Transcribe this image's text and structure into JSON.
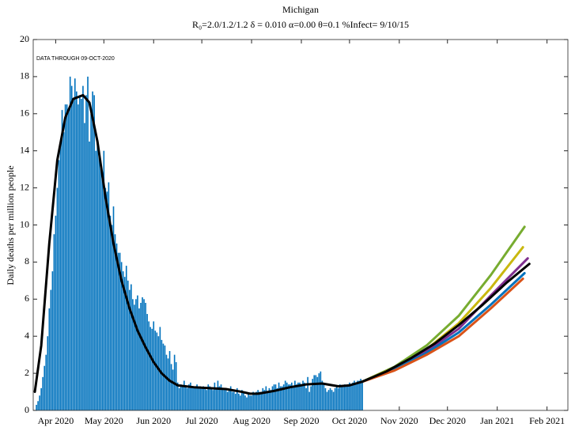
{
  "chart_data": {
    "type": "combo",
    "title": "Michigan",
    "subtitle": "R₀=2.0/1.2/1.2  δ = 0.010  α=0.00  θ=0.1  %Infect= 9/10/15",
    "annotation": "DATA THROUGH 09-OCT-2020",
    "ylabel": "Daily deaths per million people",
    "xlim": [
      0,
      333
    ],
    "xticks": [
      {
        "value": 14,
        "label": "Apr 2020"
      },
      {
        "value": 44,
        "label": "May 2020"
      },
      {
        "value": 75,
        "label": "Jun 2020"
      },
      {
        "value": 105,
        "label": "Jul 2020"
      },
      {
        "value": 136,
        "label": "Aug 2020"
      },
      {
        "value": 167,
        "label": "Sep 2020"
      },
      {
        "value": 197,
        "label": "Oct 2020"
      },
      {
        "value": 228,
        "label": "Nov 2020"
      },
      {
        "value": 258,
        "label": "Dec 2020"
      },
      {
        "value": 289,
        "label": "Jan 2021"
      },
      {
        "value": 320,
        "label": "Feb 2021"
      }
    ],
    "ylim": [
      0,
      20
    ],
    "yticks": [
      0,
      2,
      4,
      6,
      8,
      10,
      12,
      14,
      16,
      18,
      20
    ],
    "series": [
      {
        "type": "bar",
        "color": "#0072bd",
        "x": [
          2,
          3,
          4,
          5,
          6,
          7,
          8,
          9,
          10,
          11,
          12,
          13,
          14,
          15,
          16,
          17,
          18,
          19,
          20,
          21,
          22,
          23,
          24,
          25,
          26,
          27,
          28,
          29,
          30,
          31,
          32,
          33,
          34,
          35,
          36,
          37,
          38,
          39,
          40,
          41,
          42,
          43,
          44,
          45,
          46,
          47,
          48,
          49,
          50,
          51,
          52,
          53,
          54,
          55,
          56,
          57,
          58,
          59,
          60,
          61,
          62,
          63,
          64,
          65,
          66,
          67,
          68,
          69,
          70,
          71,
          72,
          73,
          74,
          75,
          76,
          77,
          78,
          79,
          80,
          81,
          82,
          83,
          84,
          85,
          86,
          87,
          88,
          89,
          90,
          91,
          92,
          93,
          94,
          95,
          96,
          97,
          98,
          99,
          100,
          101,
          102,
          103,
          104,
          105,
          106,
          107,
          108,
          109,
          110,
          111,
          112,
          113,
          114,
          115,
          116,
          117,
          118,
          119,
          120,
          121,
          122,
          123,
          124,
          125,
          126,
          127,
          128,
          129,
          130,
          131,
          132,
          133,
          134,
          135,
          136,
          137,
          138,
          139,
          140,
          141,
          142,
          143,
          144,
          145,
          146,
          147,
          148,
          149,
          150,
          151,
          152,
          153,
          154,
          155,
          156,
          157,
          158,
          159,
          160,
          161,
          162,
          163,
          164,
          165,
          166,
          167,
          168,
          169,
          170,
          171,
          172,
          173,
          174,
          175,
          176,
          177,
          178,
          179,
          180,
          181,
          182,
          183,
          184,
          185,
          186,
          187,
          188,
          189,
          190,
          191,
          192,
          193,
          194,
          195,
          196,
          197,
          198,
          199,
          200,
          201,
          202,
          203,
          204,
          205
        ],
        "values": [
          0.3,
          0.5,
          0.8,
          1.2,
          1.8,
          2.4,
          3.0,
          4.0,
          5.5,
          6.5,
          7.5,
          9.5,
          10.5,
          12,
          13.5,
          14.5,
          16.2,
          15,
          16.5,
          16.5,
          16.2,
          18,
          17.5,
          16.8,
          17.9,
          17.2,
          16.5,
          17,
          16.8,
          17.5,
          15.5,
          17,
          18,
          14.5,
          16,
          17.2,
          17,
          14,
          14.5,
          14,
          13.5,
          12.5,
          14,
          12,
          11.8,
          12.3,
          10.5,
          10,
          11,
          9.5,
          9,
          8.5,
          8.5,
          8,
          7.5,
          7.2,
          7.8,
          7.0,
          6.5,
          6.8,
          6.0,
          5.7,
          6.0,
          6.2,
          5.5,
          5.8,
          6.1,
          6.0,
          5.8,
          5.2,
          4.8,
          4.5,
          4.4,
          4.8,
          4.3,
          4.2,
          4.0,
          4.5,
          3.8,
          3.6,
          3.5,
          3.0,
          2.8,
          3.2,
          2.5,
          2.2,
          3.0,
          2.6,
          1.5,
          1.2,
          1.4,
          1.3,
          1.6,
          1.3,
          1.2,
          1.4,
          1.5,
          1.3,
          1.2,
          1.3,
          1.4,
          1.2,
          1.3,
          1.2,
          1.3,
          1.2,
          1.1,
          1.4,
          1.3,
          1.2,
          1.1,
          1.5,
          1.2,
          1.6,
          1.3,
          1.4,
          1.2,
          1.1,
          1.2,
          1.0,
          1.1,
          1.3,
          1.0,
          1.0,
          0.9,
          1.2,
          0.9,
          0.8,
          1.1,
          1.0,
          0.8,
          0.7,
          0.9,
          0.8,
          0.8,
          1.0,
          0.9,
          1.0,
          1.1,
          1.0,
          1.0,
          1.2,
          1.1,
          1.3,
          1.0,
          1.2,
          1.1,
          1.3,
          1.4,
          1.4,
          1.2,
          1.5,
          1.3,
          1.3,
          1.4,
          1.6,
          1.5,
          1.4,
          1.4,
          1.5,
          1.3,
          1.6,
          1.4,
          1.5,
          1.5,
          1.4,
          1.6,
          1.5,
          1.2,
          1.8,
          1.0,
          1.3,
          1.7,
          1.9,
          1.9,
          1.8,
          2.0,
          2.1,
          1.6,
          1.4,
          1.2,
          1.0,
          1.1,
          1.2,
          1.1,
          1.0,
          1.2,
          1.3,
          1.2,
          1.4,
          1.3,
          1.3,
          1.4,
          1.3,
          1.4,
          1.5,
          1.4,
          1.5,
          1.6,
          1.5,
          1.6,
          1.6,
          1.7,
          1.6
        ]
      },
      {
        "type": "line",
        "color": "#77ac30",
        "x": [
          205,
          225,
          245,
          265,
          285,
          306
        ],
        "values": [
          1.55,
          2.35,
          3.5,
          5.1,
          7.3,
          9.9
        ]
      },
      {
        "type": "line",
        "color": "#c9b80f",
        "x": [
          205,
          225,
          245,
          265,
          285,
          305
        ],
        "values": [
          1.55,
          2.3,
          3.3,
          4.7,
          6.6,
          8.8
        ]
      },
      {
        "type": "line",
        "color": "#7e2f8e",
        "x": [
          205,
          225,
          245,
          265,
          285,
          308
        ],
        "values": [
          1.55,
          2.25,
          3.2,
          4.4,
          6.2,
          8.2
        ]
      },
      {
        "type": "line",
        "color": "#0072bd",
        "x": [
          205,
          225,
          245,
          265,
          285,
          306
        ],
        "values": [
          1.55,
          2.2,
          3.1,
          4.2,
          5.7,
          7.4
        ]
      },
      {
        "type": "line",
        "color": "#d95319",
        "x": [
          205,
          225,
          245,
          265,
          285,
          305
        ],
        "values": [
          1.55,
          2.15,
          3.0,
          4.0,
          5.5,
          7.1
        ]
      },
      {
        "type": "line",
        "color": "#000000",
        "x": [
          1,
          5,
          10,
          15,
          20,
          25,
          31,
          35,
          40,
          45,
          50,
          55,
          60,
          65,
          70,
          75,
          80,
          85,
          90,
          100,
          110,
          120,
          130,
          135,
          140,
          150,
          160,
          170,
          180,
          190,
          197,
          205,
          220,
          235,
          250,
          265,
          280,
          295,
          309
        ],
        "values": [
          1.0,
          3.5,
          9,
          13.5,
          15.8,
          16.8,
          17.0,
          16.6,
          14.5,
          11.5,
          9,
          7,
          5.5,
          4.3,
          3.4,
          2.6,
          2.0,
          1.6,
          1.35,
          1.25,
          1.2,
          1.15,
          1.0,
          0.9,
          0.9,
          1.05,
          1.25,
          1.4,
          1.45,
          1.3,
          1.35,
          1.55,
          2.1,
          2.8,
          3.6,
          4.6,
          5.7,
          6.9,
          7.9
        ]
      }
    ]
  }
}
